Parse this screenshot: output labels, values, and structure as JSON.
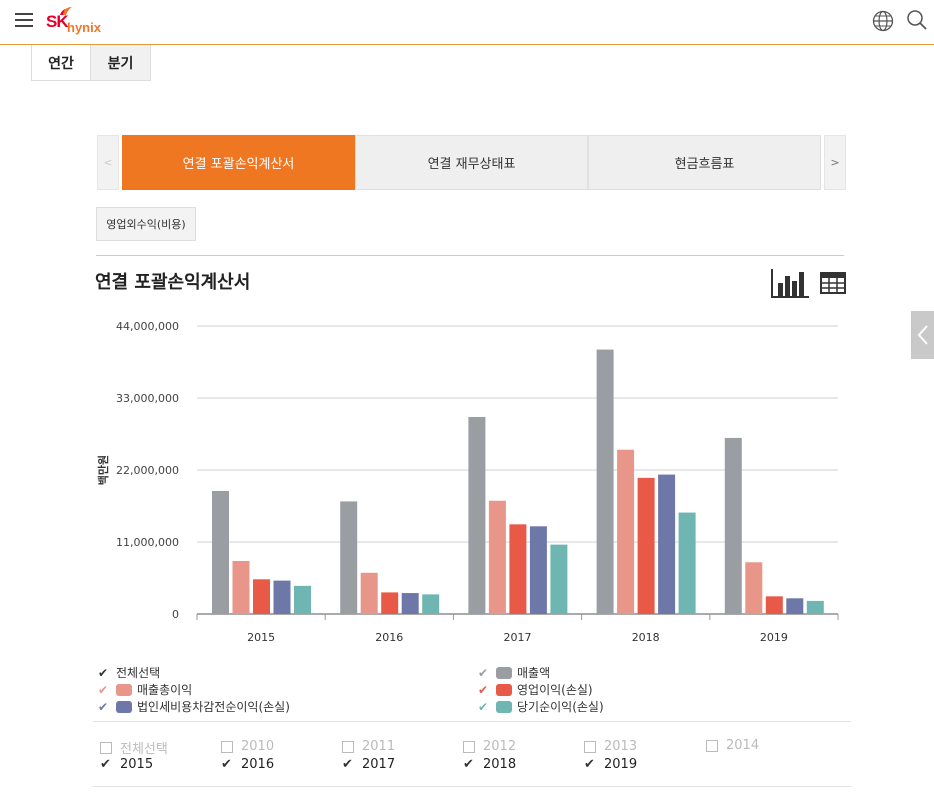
{
  "header": {
    "logo_sk": "SK",
    "logo_hynix": "hynix",
    "menu_icon": "hamburger-icon",
    "globe_icon": "globe-icon",
    "search_icon": "search-icon"
  },
  "period_tabs": [
    {
      "label": "연간",
      "active": true
    },
    {
      "label": "분기",
      "active": false
    }
  ],
  "statement_tabs": {
    "prev": "<",
    "next": ">",
    "items": [
      {
        "label": "연결 포괄손익계산서",
        "active": true
      },
      {
        "label": "연결 재무상태표",
        "active": false
      },
      {
        "label": "현금흐름표",
        "active": false
      }
    ]
  },
  "sub_button": "영업외수익(비용)",
  "chart_title": "연결 포괄손익계산서",
  "view_icons": {
    "chart": "bar-chart-icon",
    "table": "table-icon"
  },
  "colors": {
    "accent": "#f07722",
    "s1": "#9a9ea3",
    "s2": "#e8958a",
    "s3": "#e85947",
    "s4": "#6e78a8",
    "s5": "#6fb6b2"
  },
  "chart_data": {
    "type": "bar",
    "categories": [
      "2015",
      "2016",
      "2017",
      "2018",
      "2019"
    ],
    "ylabel": "백만원",
    "ylim": [
      0,
      44000000
    ],
    "yticks": [
      "0",
      "11,000,000",
      "22,000,000",
      "33,000,000",
      "44,000,000"
    ],
    "ytick_values": [
      0,
      11000000,
      22000000,
      33000000,
      44000000
    ],
    "grid": true,
    "series": [
      {
        "name": "매출액",
        "values": [
          18800000,
          17200000,
          30100000,
          40400000,
          26900000
        ]
      },
      {
        "name": "매출총이익",
        "values": [
          8100000,
          6300000,
          17300000,
          25100000,
          7900000
        ]
      },
      {
        "name": "영업이익(손실)",
        "values": [
          5300000,
          3300000,
          13700000,
          20800000,
          2700000
        ]
      },
      {
        "name": "법인세비용차감전순이익(손실)",
        "values": [
          5100000,
          3200000,
          13400000,
          21300000,
          2400000
        ]
      },
      {
        "name": "당기순이익(손실)",
        "values": [
          4300000,
          3000000,
          10600000,
          15500000,
          2000000
        ]
      }
    ]
  },
  "legend": {
    "select_all": "전체선택",
    "check": "✔"
  },
  "years": [
    {
      "label": "전체선택",
      "checked": false
    },
    {
      "label": "2010",
      "checked": false
    },
    {
      "label": "2011",
      "checked": false
    },
    {
      "label": "2012",
      "checked": false
    },
    {
      "label": "2013",
      "checked": false
    },
    {
      "label": "2014",
      "checked": false
    },
    {
      "label": "2015",
      "checked": true
    },
    {
      "label": "2016",
      "checked": true
    },
    {
      "label": "2017",
      "checked": true
    },
    {
      "label": "2018",
      "checked": true
    },
    {
      "label": "2019",
      "checked": true
    }
  ]
}
